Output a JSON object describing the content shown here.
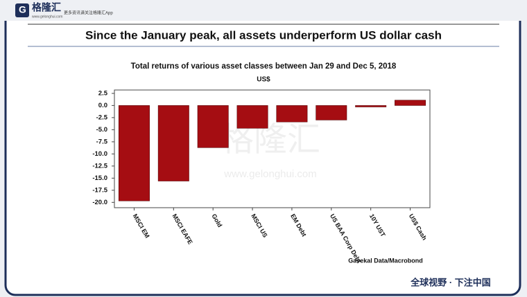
{
  "header": {
    "brand": "格隆汇",
    "site": "www.gelonghui.com",
    "tagline": "更多资讯请关注格隆汇App"
  },
  "headline": "Since the January peak, all assets underperform US dollar cash",
  "watermark": {
    "brand": "格隆汇",
    "site": "www.gelonghui.com"
  },
  "footer": "全球视野 · 下注中国",
  "chart_data": {
    "type": "bar",
    "title": "Total returns of various asset classes between Jan 29 and Dec 5, 2018",
    "subtitle": "US$",
    "source": "Gavekal Data/Macrobond",
    "categories": [
      "MSCI EM",
      "MSCI EAFE",
      "Gold",
      "MSCI US",
      "EM Debt",
      "US BAA Corp Debt",
      "10Y UST",
      "US$ Cash"
    ],
    "values": [
      -19.7,
      -15.6,
      -8.7,
      -4.7,
      -3.4,
      -3.0,
      -0.3,
      1.1
    ],
    "color": "#a50d12",
    "ylim": [
      -21.1,
      3.2
    ],
    "yticks": [
      2.5,
      {
        "value": 0,
        "label": "0.0"
      },
      -2.5,
      {
        "value": -5,
        "label": "-5.0"
      },
      -7.5,
      {
        "value": -10,
        "label": "-10.0"
      },
      -12.5,
      {
        "value": -15,
        "label": "-15.0"
      },
      -17.5,
      {
        "value": -20,
        "label": "-20.0"
      }
    ]
  }
}
